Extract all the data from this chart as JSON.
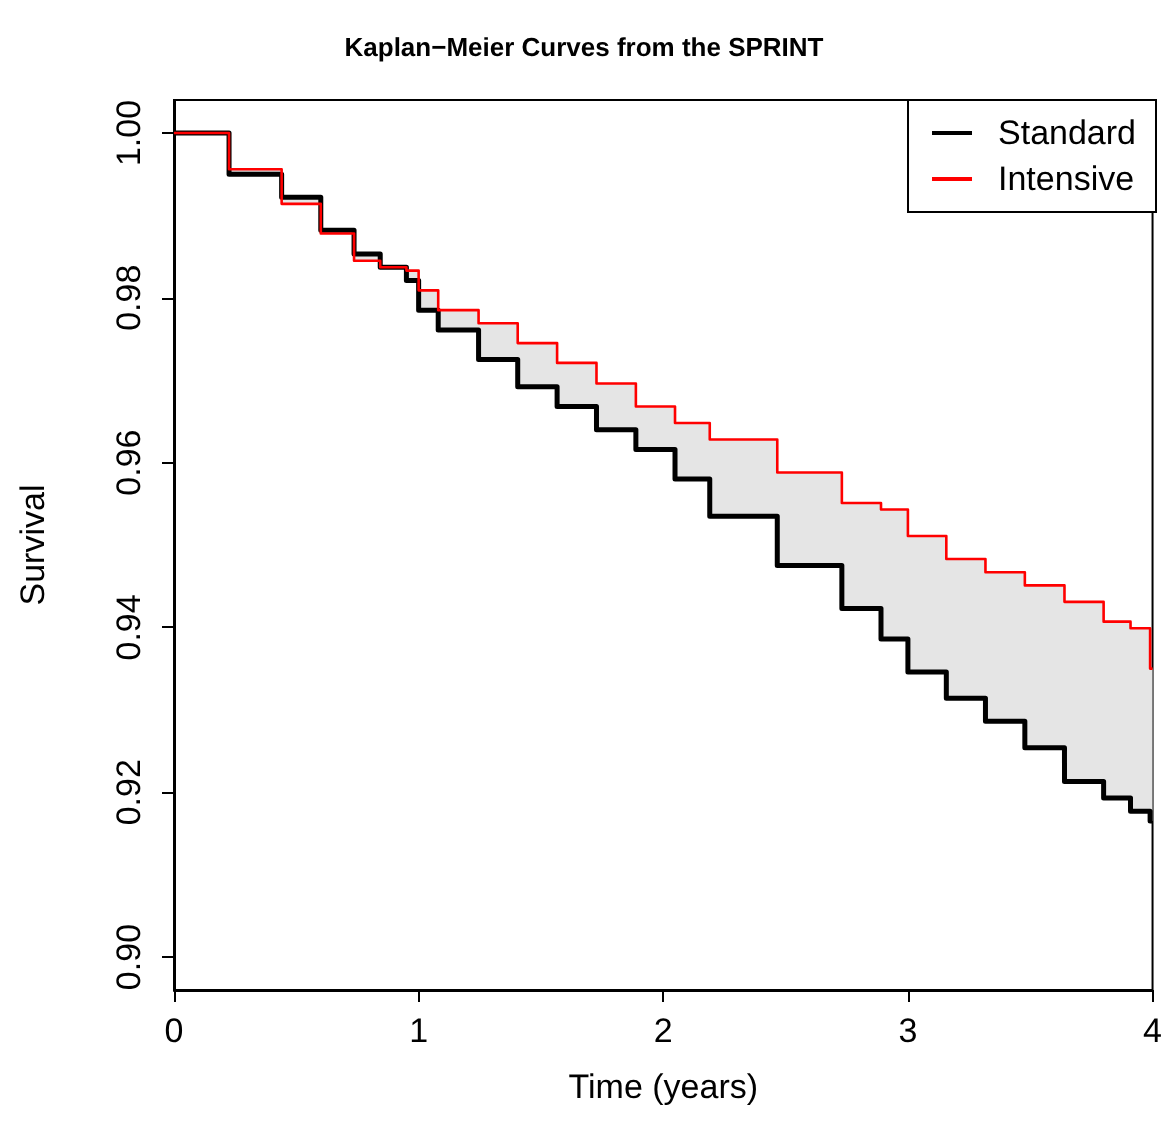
{
  "chart_data": {
    "type": "step",
    "title": "Kaplan−Meier Curves from the SPRINT",
    "xlabel": "Time (years)",
    "ylabel": "Survival",
    "x": [
      0,
      0.225,
      0.44,
      0.6,
      0.736,
      0.843,
      0.95,
      1.0,
      1.08,
      1.245,
      1.405,
      1.566,
      1.727,
      1.888,
      2.048,
      2.19,
      2.466,
      2.73,
      2.89,
      3.0,
      3.157,
      3.317,
      3.478,
      3.64,
      3.8,
      3.91,
      3.99,
      4.0
    ],
    "series": [
      {
        "name": "Standard",
        "color": "#000000",
        "values": [
          1.0,
          0.995,
          0.9922,
          0.9882,
          0.9853,
          0.9837,
          0.9821,
          0.9785,
          0.9761,
          0.9725,
          0.9692,
          0.9668,
          0.964,
          0.9616,
          0.958,
          0.9535,
          0.9475,
          0.9423,
          0.9386,
          0.9346,
          0.9314,
          0.9286,
          0.9254,
          0.9213,
          0.9193,
          0.9177,
          0.9165,
          0.9165
        ]
      },
      {
        "name": "Intensive",
        "color": "#ff0000",
        "values": [
          1.0,
          0.9956,
          0.9914,
          0.9878,
          0.9845,
          0.9837,
          0.9833,
          0.9809,
          0.9785,
          0.9769,
          0.9745,
          0.9721,
          0.9696,
          0.9668,
          0.9648,
          0.9628,
          0.9588,
          0.9551,
          0.9543,
          0.9511,
          0.9483,
          0.9467,
          0.9451,
          0.9431,
          0.9407,
          0.9399,
          0.935,
          0.935
        ],
        "lower": [
          1.0,
          0.995,
          0.9922,
          0.9882,
          0.9853,
          0.9837,
          0.9821,
          0.9785,
          0.9761,
          0.9725,
          0.9692,
          0.9668,
          0.964,
          0.9616,
          0.958,
          0.9535,
          0.9475,
          0.9423,
          0.9386,
          0.9346,
          0.9314,
          0.9286,
          0.9254,
          0.9213,
          0.9193,
          0.9177,
          0.9165,
          0.9165
        ],
        "upper": [
          1.0,
          0.9956,
          0.9914,
          0.9878,
          0.9845,
          0.9837,
          0.9833,
          0.9809,
          0.9785,
          0.9769,
          0.9745,
          0.9721,
          0.9696,
          0.9668,
          0.9648,
          0.9628,
          0.9588,
          0.9551,
          0.9543,
          0.9511,
          0.9483,
          0.9467,
          0.9451,
          0.9431,
          0.9407,
          0.9399,
          0.935,
          0.935
        ]
      }
    ],
    "xlim": [
      0,
      4
    ],
    "xticks": [
      0,
      1,
      2,
      3,
      4
    ],
    "ylim": [
      0.896,
      1.004
    ],
    "yticks": [
      {
        "value": 0.9,
        "label": "0.90"
      },
      {
        "value": 0.92,
        "label": "0.92"
      },
      {
        "value": 0.94,
        "label": "0.94"
      },
      {
        "value": 0.96,
        "label": "0.96"
      },
      {
        "value": 0.98,
        "label": "0.98"
      },
      {
        "value": 1.0,
        "label": "1.00"
      }
    ],
    "grid": false,
    "legend": "top right",
    "marker": "none",
    "line_style": "solid"
  }
}
